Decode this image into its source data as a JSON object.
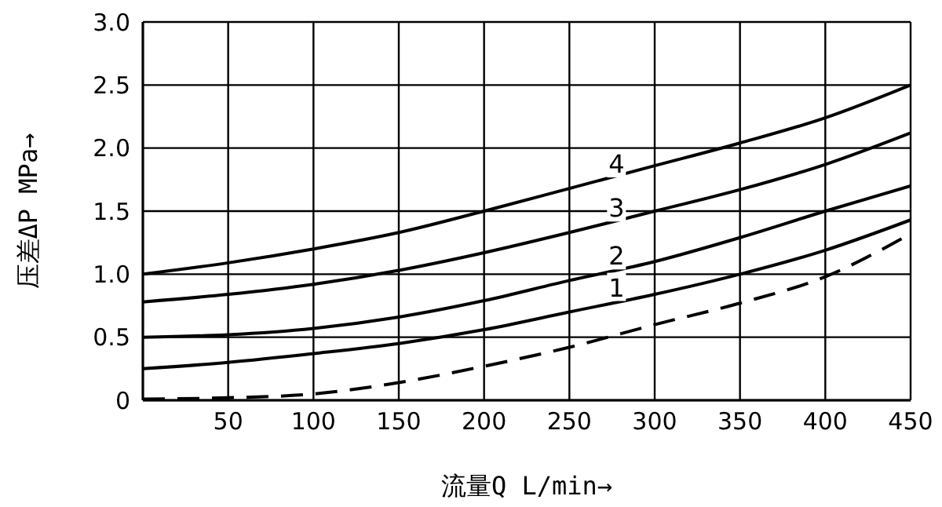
{
  "chart_data": {
    "type": "line",
    "xlabel": "流量Q  L/min→",
    "ylabel": "压差ΔP MPa→",
    "x": [
      0,
      50,
      100,
      150,
      200,
      250,
      300,
      350,
      400,
      450
    ],
    "series": [
      {
        "name": "4",
        "color": "#000000",
        "values": [
          1.0,
          1.09,
          1.2,
          1.33,
          1.5,
          1.68,
          1.86,
          2.04,
          2.24,
          2.5
        ]
      },
      {
        "name": "3",
        "color": "#000000",
        "values": [
          0.78,
          0.84,
          0.92,
          1.03,
          1.17,
          1.33,
          1.5,
          1.67,
          1.87,
          2.12
        ]
      },
      {
        "name": "2",
        "color": "#000000",
        "values": [
          0.5,
          0.52,
          0.57,
          0.66,
          0.79,
          0.95,
          1.1,
          1.29,
          1.5,
          1.7
        ]
      },
      {
        "name": "1",
        "color": "#000000",
        "values": [
          0.25,
          0.3,
          0.37,
          0.45,
          0.56,
          0.7,
          0.84,
          1.0,
          1.19,
          1.43
        ]
      },
      {
        "color": "#000000",
        "line_style": "dashed",
        "values": [
          0.01,
          0.02,
          0.05,
          0.14,
          0.27,
          0.42,
          0.6,
          0.77,
          0.98,
          1.32
        ]
      }
    ],
    "xlim": [
      0,
      450
    ],
    "xticks": [
      {
        "value": 0,
        "label": null
      },
      50,
      100,
      150,
      200,
      250,
      300,
      350,
      400,
      450
    ],
    "ylim": [
      0,
      3
    ],
    "yticks": [
      {
        "value": 0,
        "label": "0"
      },
      {
        "value": 0.5,
        "label": "0.5"
      },
      {
        "value": 1,
        "label": "1.0"
      },
      {
        "value": 1.5,
        "label": "1.5"
      },
      {
        "value": 2,
        "label": "2.0"
      },
      {
        "value": 2.5,
        "label": "2.5"
      },
      {
        "value": 3,
        "label": "3.0"
      }
    ],
    "grid": true,
    "marker": "none",
    "line_style": "solid",
    "legend": false
  }
}
